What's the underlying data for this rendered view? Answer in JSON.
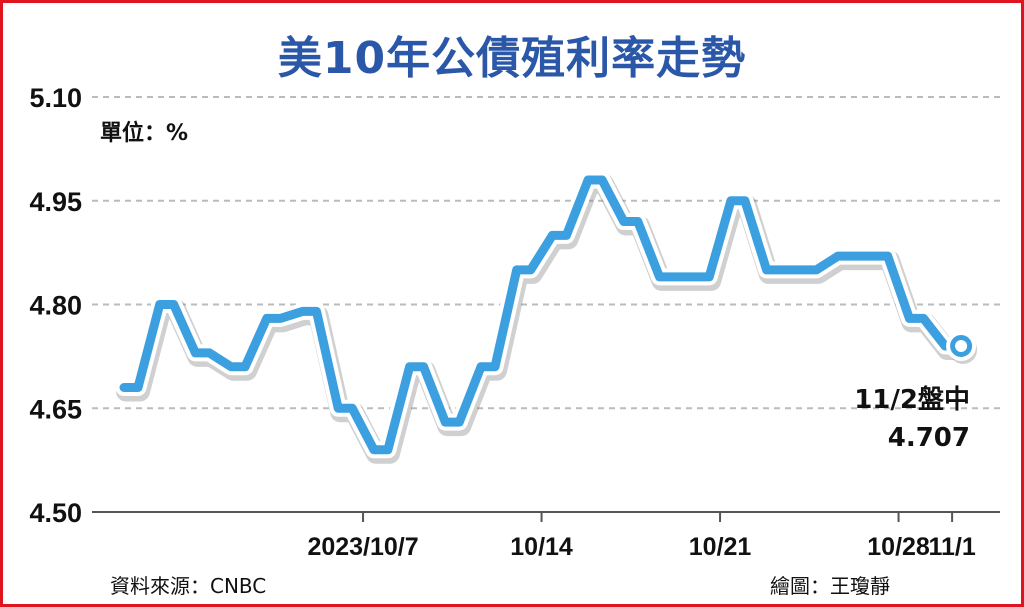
{
  "title": "美10年公債殖利率走勢",
  "unit_label": "單位：%",
  "source": "資料來源：CNBC",
  "credit": "繪圖：王瓊靜",
  "colors": {
    "line": "#3ca0e0",
    "title": "#2b57a8",
    "frame": "#e0141e",
    "grid": "#bbbbbb"
  },
  "annotation": {
    "line1": "11/2盤中",
    "line2": "4.707"
  },
  "chart_data": {
    "type": "line",
    "title": "美10年公債殖利率走勢",
    "ylabel": "單位：%",
    "ylim": [
      4.5,
      5.1
    ],
    "yticks": [
      "5.10",
      "4.95",
      "4.80",
      "4.65",
      "4.50"
    ],
    "xtick_labels": [
      {
        "label": "2023/10/7",
        "index": 6.5
      },
      {
        "label": "10/14",
        "index": 11.5
      },
      {
        "label": "10/21",
        "index": 16.5
      },
      {
        "label": "10/28",
        "index": 21.5
      },
      {
        "label": "11/1",
        "index": 23
      }
    ],
    "grid": true,
    "series": [
      {
        "values": [
          4.68,
          4.8,
          4.73,
          4.71,
          4.78,
          4.79,
          4.65,
          4.59,
          4.71,
          4.63,
          4.71,
          4.85,
          4.9,
          4.98,
          4.92,
          4.84,
          4.84,
          4.95,
          4.85,
          4.85,
          4.87,
          4.87,
          4.78,
          4.74
        ],
        "last_marker": true
      }
    ]
  }
}
